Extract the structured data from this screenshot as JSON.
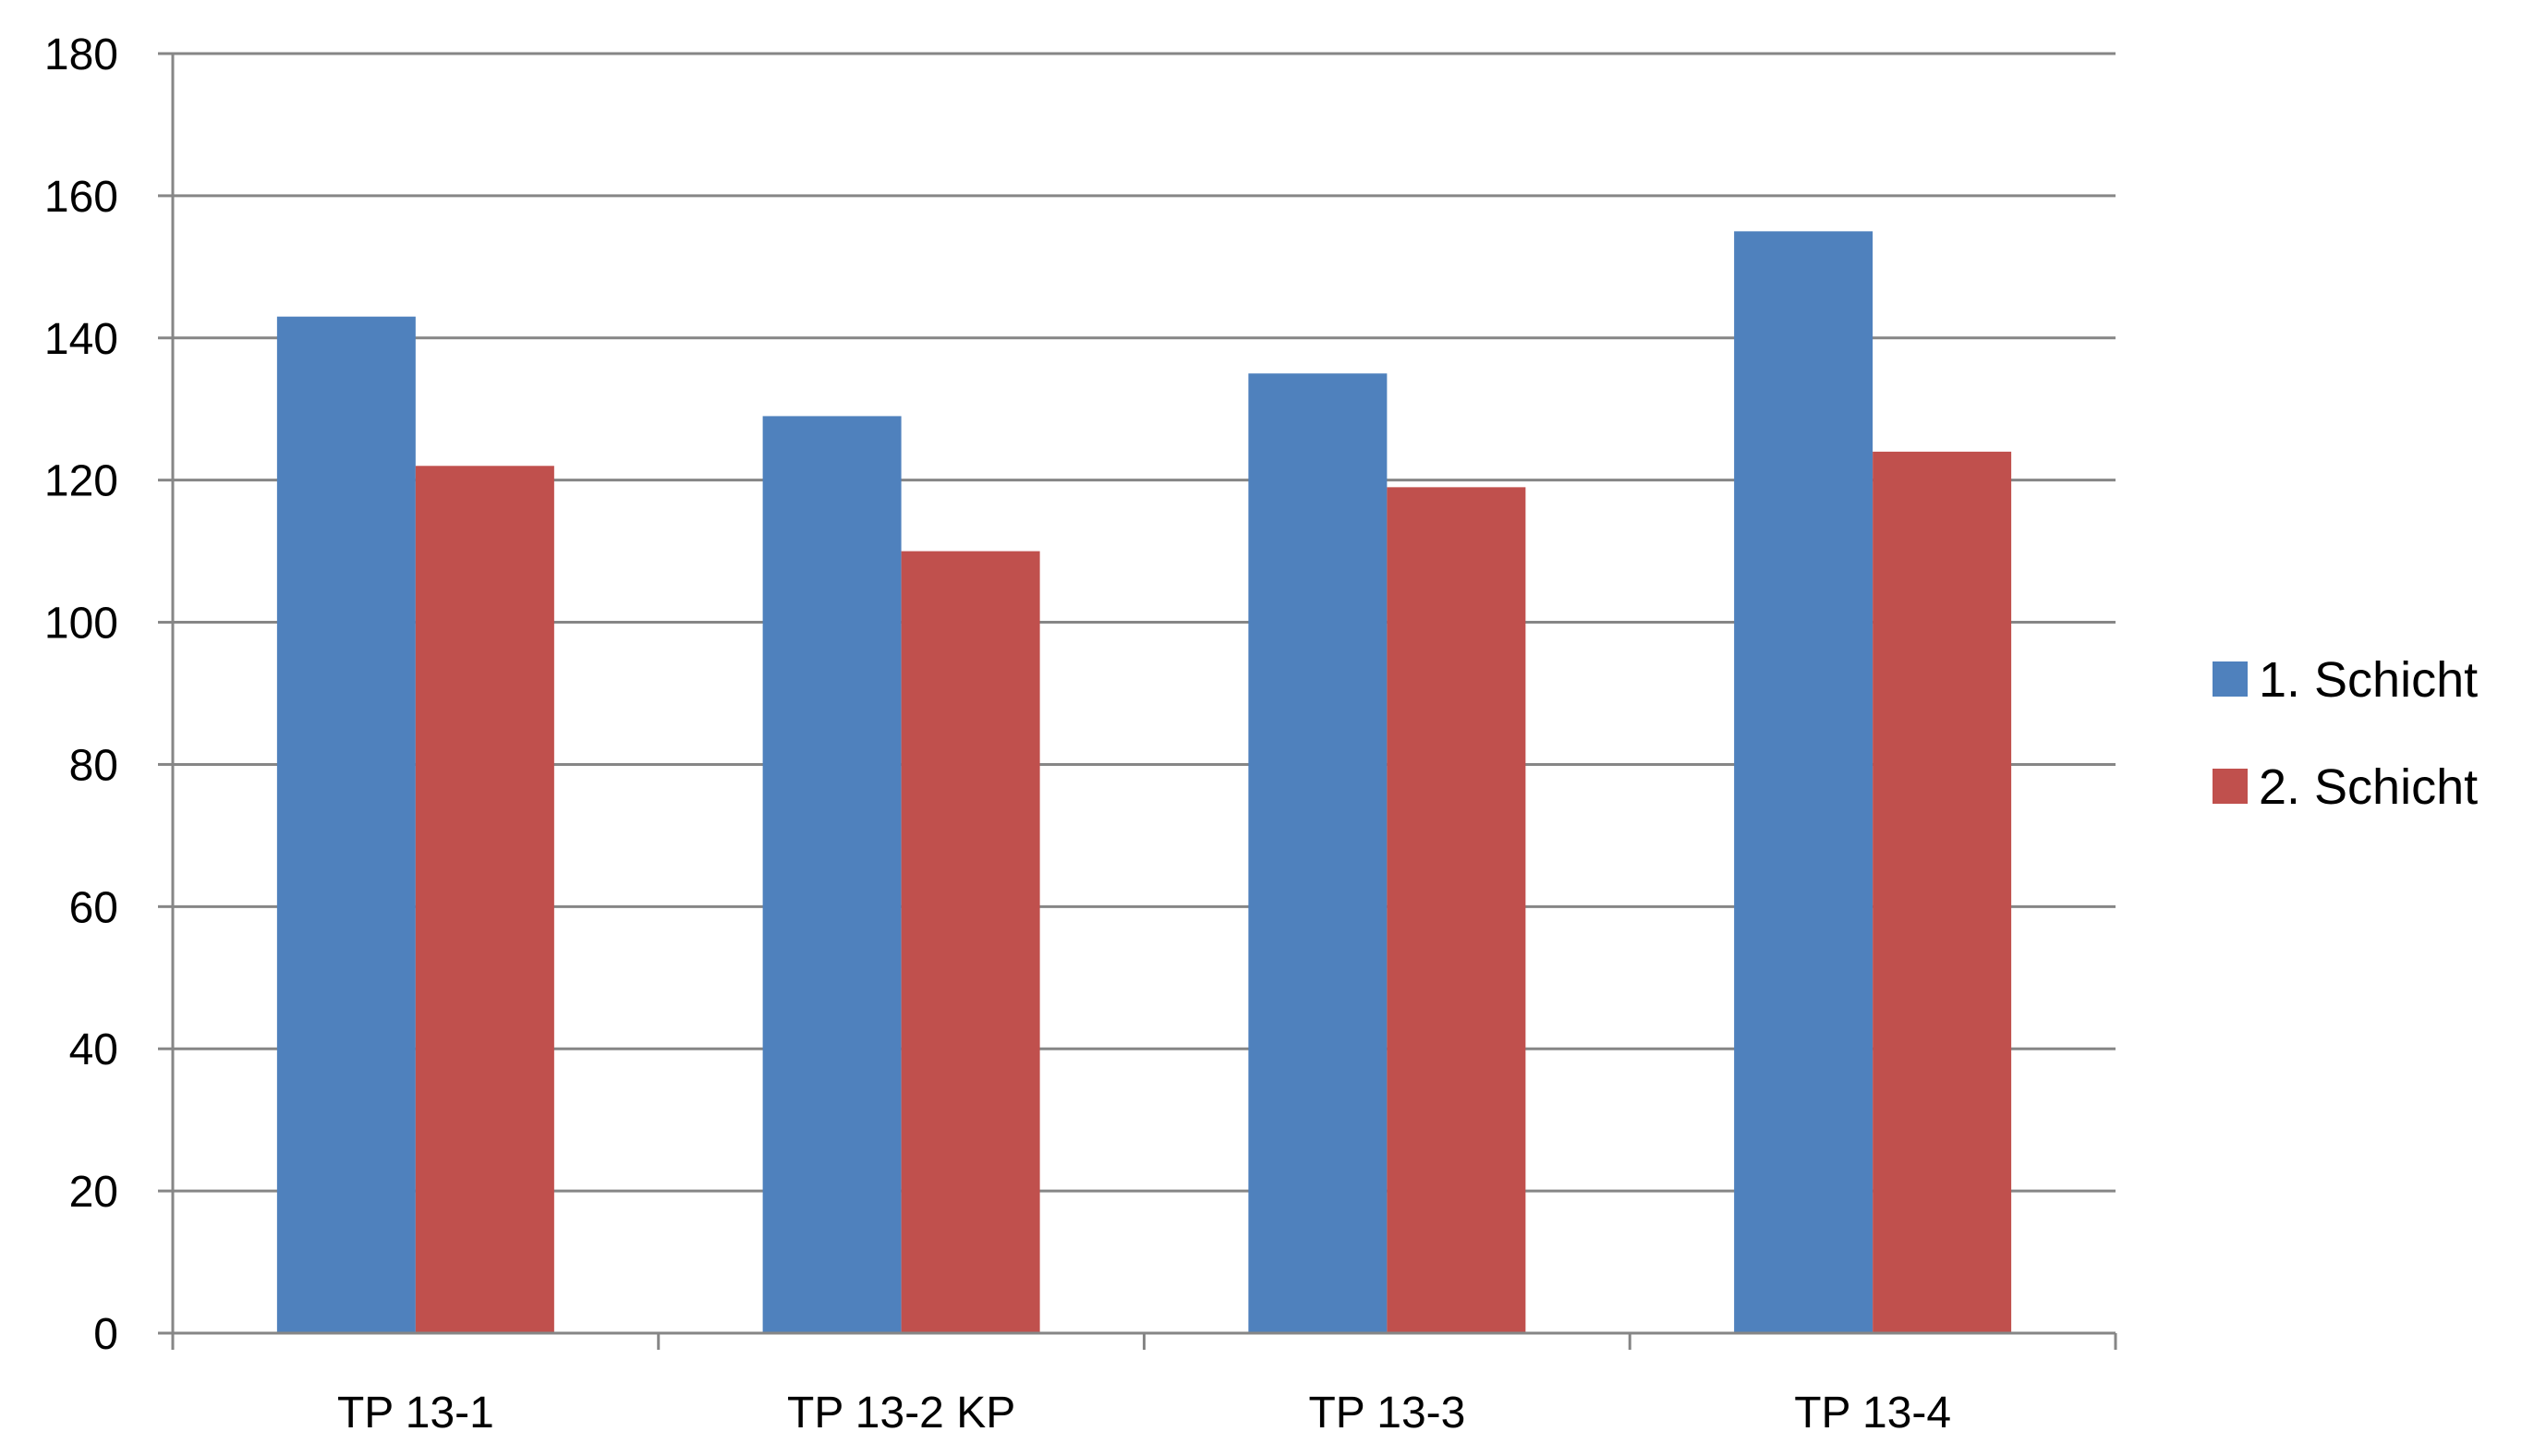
{
  "chart_data": {
    "type": "bar",
    "categories": [
      "TP 13-1",
      "TP 13-2 KP",
      "TP 13-3",
      "TP 13-4"
    ],
    "series": [
      {
        "name": "1. Schicht",
        "color": "#4F81BD",
        "values": [
          143,
          129,
          135,
          155
        ]
      },
      {
        "name": "2. Schicht",
        "color": "#C0504D",
        "values": [
          122,
          110,
          119,
          124
        ]
      }
    ],
    "ylim": [
      0,
      180
    ],
    "y_ticks": [
      0,
      20,
      40,
      60,
      80,
      100,
      120,
      140,
      160,
      180
    ],
    "grid": true,
    "legend_position": "right",
    "axis_color": "#868686",
    "grid_color": "#868686"
  }
}
